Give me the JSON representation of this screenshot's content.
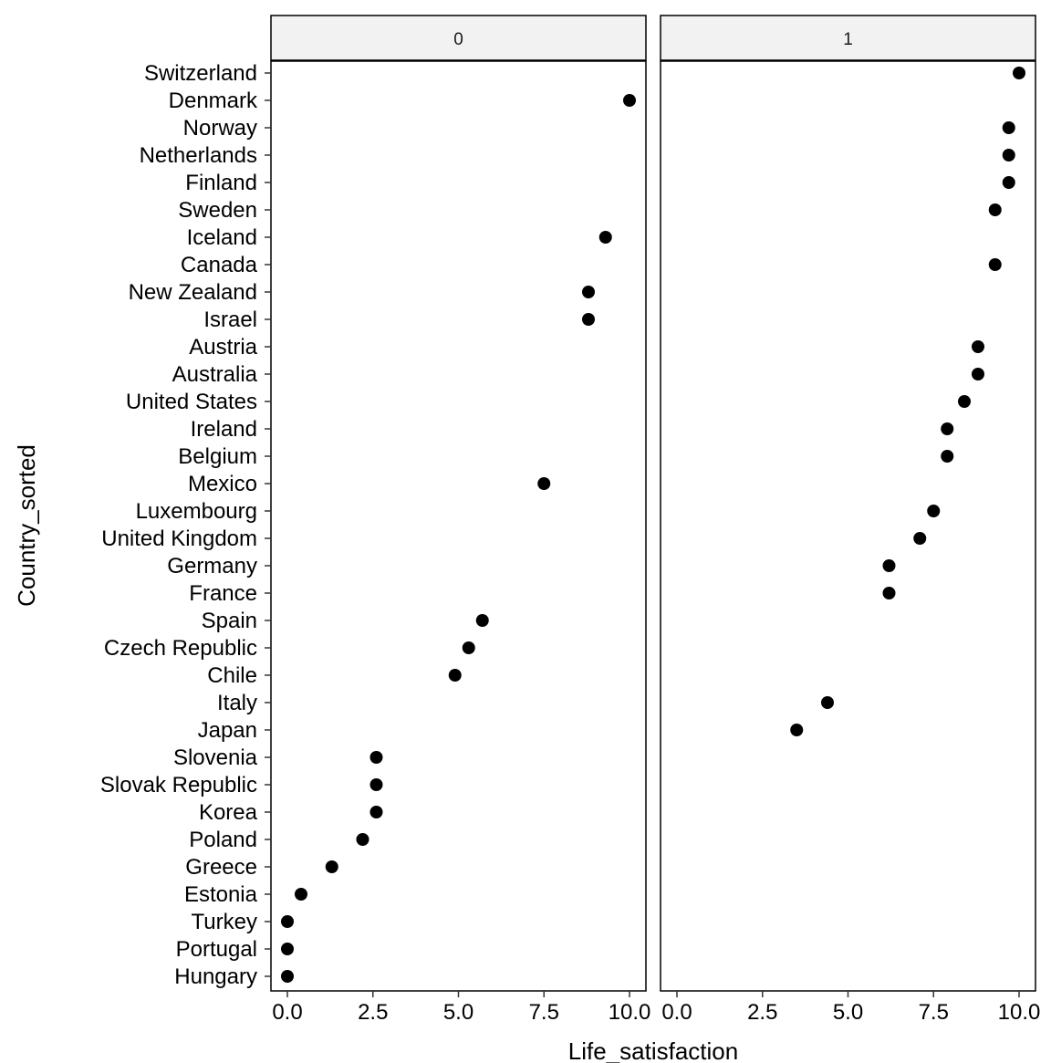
{
  "chart_data": {
    "type": "scatter",
    "xlabel": "Life_satisfaction",
    "ylabel": "Country_sorted",
    "xlim": [
      0,
      10
    ],
    "x_ticks": [
      "0.0",
      "2.5",
      "5.0",
      "7.5",
      "10.0"
    ],
    "grid": false,
    "categories": [
      "Switzerland",
      "Denmark",
      "Norway",
      "Netherlands",
      "Finland",
      "Sweden",
      "Iceland",
      "Canada",
      "New Zealand",
      "Israel",
      "Austria",
      "Australia",
      "United States",
      "Ireland",
      "Belgium",
      "Mexico",
      "Luxembourg",
      "United Kingdom",
      "Germany",
      "France",
      "Spain",
      "Czech Republic",
      "Chile",
      "Italy",
      "Japan",
      "Slovenia",
      "Slovak Republic",
      "Korea",
      "Poland",
      "Greece",
      "Estonia",
      "Turkey",
      "Portugal",
      "Hungary"
    ],
    "facets": [
      {
        "label": "0",
        "points": [
          {
            "country": "Denmark",
            "x": 10.0
          },
          {
            "country": "Iceland",
            "x": 9.3
          },
          {
            "country": "New Zealand",
            "x": 8.8
          },
          {
            "country": "Israel",
            "x": 8.8
          },
          {
            "country": "Mexico",
            "x": 7.5
          },
          {
            "country": "Spain",
            "x": 5.7
          },
          {
            "country": "Czech Republic",
            "x": 5.3
          },
          {
            "country": "Chile",
            "x": 4.9
          },
          {
            "country": "Slovenia",
            "x": 2.6
          },
          {
            "country": "Slovak Republic",
            "x": 2.6
          },
          {
            "country": "Korea",
            "x": 2.6
          },
          {
            "country": "Poland",
            "x": 2.2
          },
          {
            "country": "Greece",
            "x": 1.3
          },
          {
            "country": "Estonia",
            "x": 0.4
          },
          {
            "country": "Turkey",
            "x": 0.0
          },
          {
            "country": "Portugal",
            "x": 0.0
          },
          {
            "country": "Hungary",
            "x": 0.0
          }
        ]
      },
      {
        "label": "1",
        "points": [
          {
            "country": "Switzerland",
            "x": 10.0
          },
          {
            "country": "Norway",
            "x": 9.7
          },
          {
            "country": "Netherlands",
            "x": 9.7
          },
          {
            "country": "Finland",
            "x": 9.7
          },
          {
            "country": "Sweden",
            "x": 9.3
          },
          {
            "country": "Canada",
            "x": 9.3
          },
          {
            "country": "Austria",
            "x": 8.8
          },
          {
            "country": "Australia",
            "x": 8.8
          },
          {
            "country": "United States",
            "x": 8.4
          },
          {
            "country": "Ireland",
            "x": 7.9
          },
          {
            "country": "Belgium",
            "x": 7.9
          },
          {
            "country": "Luxembourg",
            "x": 7.5
          },
          {
            "country": "United Kingdom",
            "x": 7.1
          },
          {
            "country": "Germany",
            "x": 6.2
          },
          {
            "country": "France",
            "x": 6.2
          },
          {
            "country": "Italy",
            "x": 4.4
          },
          {
            "country": "Japan",
            "x": 3.5
          }
        ]
      }
    ],
    "colors": {
      "point": "#000000",
      "strip_fill": "#f2f2f2",
      "panel_border": "#000000"
    }
  }
}
